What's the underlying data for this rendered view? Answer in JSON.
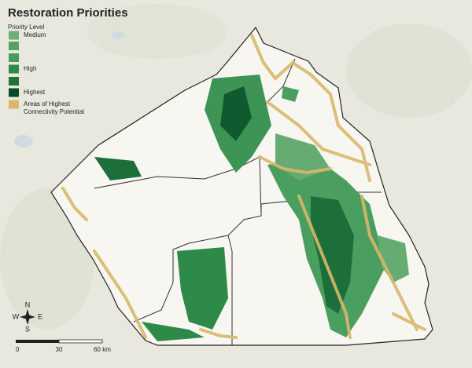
{
  "title": "Restoration Priorities",
  "legend": {
    "title": "Priority Level",
    "items": [
      {
        "label": "Medium",
        "color": "#6fae77"
      },
      {
        "label": "High",
        "color": "#2e8a48"
      },
      {
        "label": "Highest",
        "color": "#0b4a26"
      },
      {
        "label": "Areas of Highest",
        "label2": "Connectivity Potential",
        "color": "#d9b86a"
      }
    ]
  },
  "compass": {
    "n": "N",
    "e": "E",
    "s": "S",
    "w": "W"
  },
  "scale": {
    "labels": [
      "0",
      "30",
      "60 km"
    ]
  }
}
